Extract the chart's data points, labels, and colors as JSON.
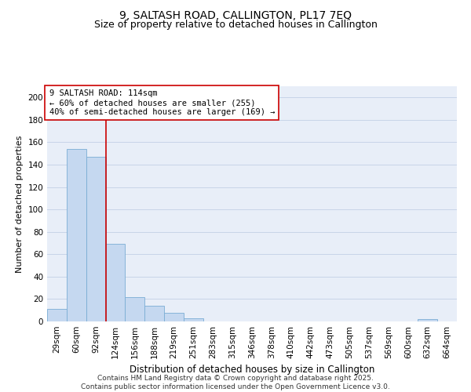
{
  "title": "9, SALTASH ROAD, CALLINGTON, PL17 7EQ",
  "subtitle": "Size of property relative to detached houses in Callington",
  "xlabel": "Distribution of detached houses by size in Callington",
  "ylabel": "Number of detached properties",
  "categories": [
    "29sqm",
    "60sqm",
    "92sqm",
    "124sqm",
    "156sqm",
    "188sqm",
    "219sqm",
    "251sqm",
    "283sqm",
    "315sqm",
    "346sqm",
    "378sqm",
    "410sqm",
    "442sqm",
    "473sqm",
    "505sqm",
    "537sqm",
    "569sqm",
    "600sqm",
    "632sqm",
    "664sqm"
  ],
  "values": [
    11,
    154,
    147,
    69,
    22,
    14,
    8,
    3,
    0,
    0,
    0,
    0,
    0,
    0,
    0,
    0,
    0,
    0,
    0,
    2,
    0
  ],
  "bar_color": "#c5d8f0",
  "bar_edge_color": "#7aadd4",
  "vline_color": "#cc0000",
  "vline_x_idx": 2.5,
  "annotation_text": "9 SALTASH ROAD: 114sqm\n← 60% of detached houses are smaller (255)\n40% of semi-detached houses are larger (169) →",
  "annotation_box_facecolor": "white",
  "annotation_box_edgecolor": "#cc0000",
  "ylim": [
    0,
    210
  ],
  "yticks": [
    0,
    20,
    40,
    60,
    80,
    100,
    120,
    140,
    160,
    180,
    200
  ],
  "grid_color": "#c8d4e8",
  "background_color": "#e8eef8",
  "footer_text": "Contains HM Land Registry data © Crown copyright and database right 2025.\nContains public sector information licensed under the Open Government Licence v3.0.",
  "title_fontsize": 10,
  "subtitle_fontsize": 9,
  "xlabel_fontsize": 8.5,
  "ylabel_fontsize": 8,
  "tick_fontsize": 7.5,
  "annotation_fontsize": 7.5,
  "footer_fontsize": 6.5
}
